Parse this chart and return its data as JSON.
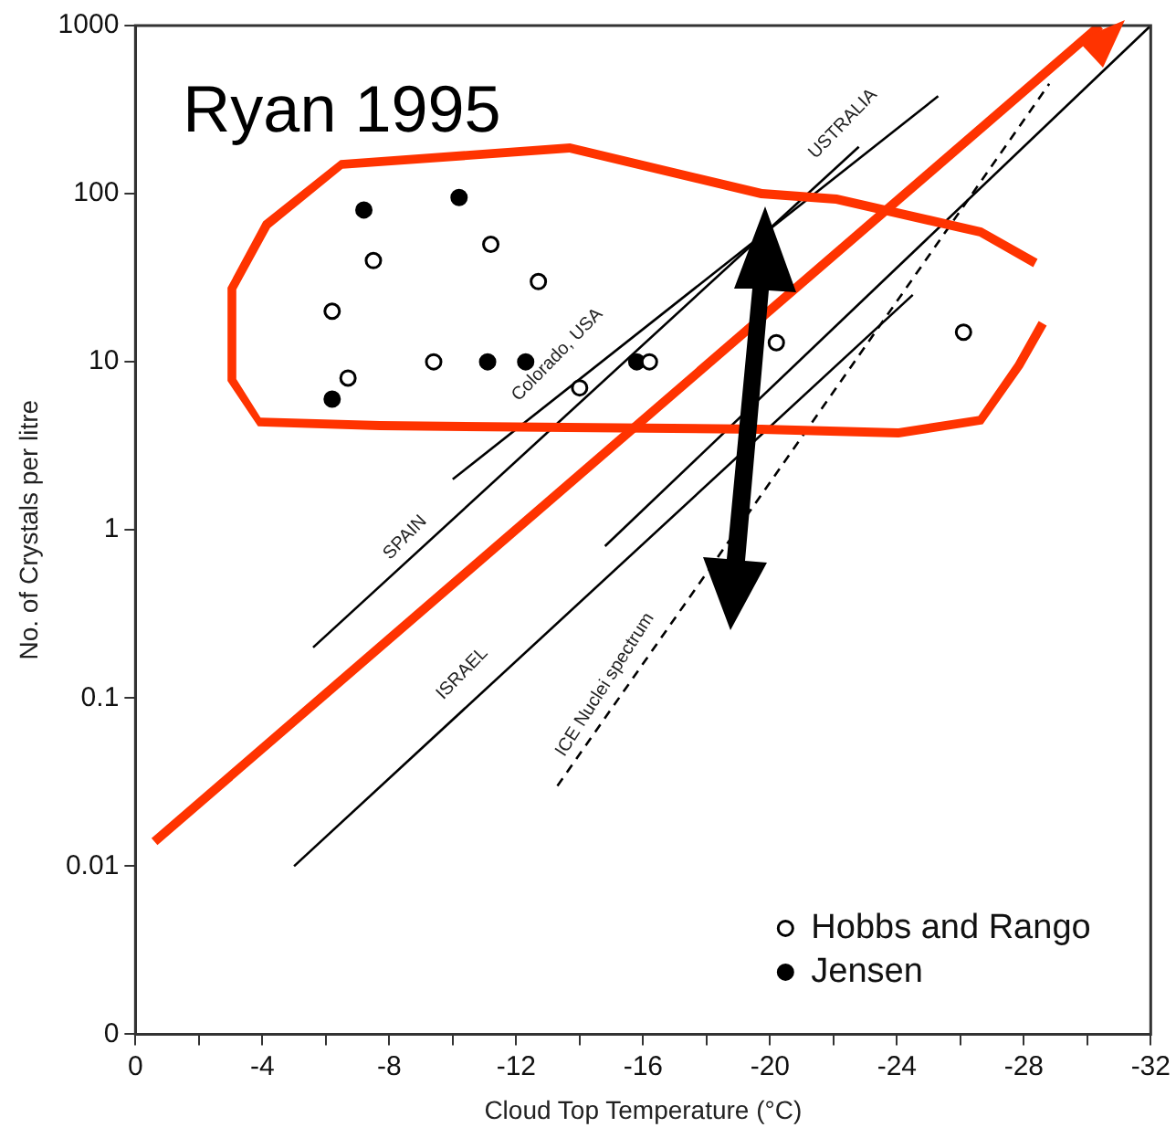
{
  "chart_data": {
    "type": "scatter",
    "xlabel": "Cloud Top Temperature (°C)",
    "ylabel": "No. of Crystals per litre",
    "annotations": [
      "Ryan 1995",
      "SPAIN",
      "Colorado, USA",
      "USTRALIA",
      "ISRAEL",
      "ICE Nuclei spectrum"
    ],
    "log": "y",
    "grid": false,
    "legend": "bottom right",
    "marker": "circle",
    "xlim": [
      0,
      -32
    ],
    "xticks": [
      0,
      {
        "value": -2,
        "label": null
      },
      -4,
      {
        "value": -6,
        "label": null
      },
      -8,
      {
        "value": -10,
        "label": null
      },
      -12,
      {
        "value": -14,
        "label": null
      },
      -16,
      {
        "value": -18,
        "label": null
      },
      -20,
      {
        "value": -22,
        "label": null
      },
      -24,
      {
        "value": -26,
        "label": null
      },
      -28,
      {
        "value": -30,
        "label": null
      },
      -32
    ],
    "ylim": [
      0.001,
      1000
    ],
    "yticks": [
      {
        "value": 0.001,
        "label": "0"
      },
      0.01,
      0.1,
      1,
      10,
      100,
      1000
    ],
    "series": [
      {
        "type": "scatter",
        "name": "Hobbs and Rango",
        "color": "#000000",
        "x": [
          -7.5,
          -6.2,
          -6.7,
          -9.4,
          -11.2,
          -12.7,
          -14.0,
          -16.2,
          -20.2,
          -26.1
        ],
        "values": [
          40,
          20,
          8,
          10,
          50,
          30,
          7,
          10,
          13,
          15
        ]
      },
      {
        "type": "scatter",
        "name": "Jensen",
        "color": "#000000",
        "x": [
          -7.2,
          -10.2,
          -6.2,
          -11.1,
          -12.3,
          -15.8
        ],
        "values": [
          80,
          95,
          6,
          10,
          10,
          10
        ]
      },
      {
        "type": "line",
        "color": "#000000",
        "marker": "none",
        "x": [
          -5.6,
          -22.8
        ],
        "values": [
          0.2,
          190
        ]
      },
      {
        "type": "line",
        "color": "#000000",
        "marker": "none",
        "x": [
          -10,
          -25.3
        ],
        "values": [
          2,
          380
        ]
      },
      {
        "type": "line",
        "color": "#000000",
        "marker": "none",
        "x": [
          -5,
          -24.5
        ],
        "values": [
          0.01,
          25
        ]
      },
      {
        "type": "line",
        "color": "#000000",
        "marker": "none",
        "x": [
          -14.8,
          -32
        ],
        "values": [
          0.8,
          1000
        ]
      },
      {
        "type": "line",
        "color": "#000000",
        "marker": "none",
        "line_style": "dashed",
        "x": [
          -13.3,
          -28.8
        ],
        "values": [
          0.03,
          450
        ]
      },
      {
        "type": "line",
        "color": "#ff3300",
        "marker": "none",
        "x": [
          -0.6,
          -30.4
        ],
        "values": [
          0.014,
          1000
        ]
      }
    ]
  }
}
